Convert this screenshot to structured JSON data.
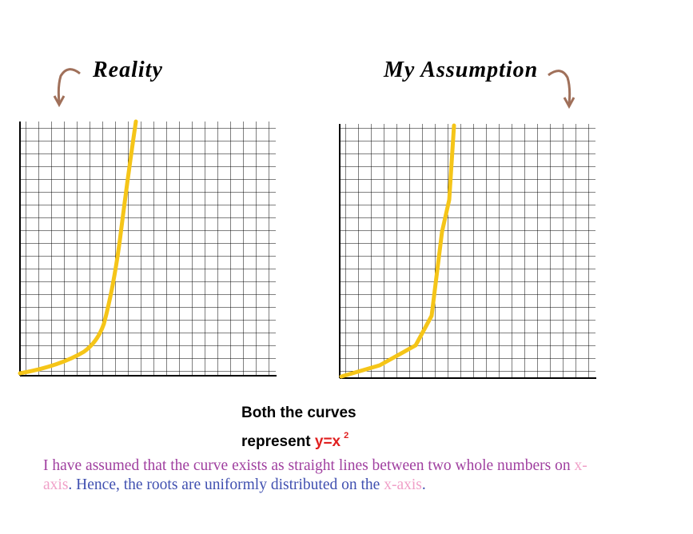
{
  "titles": {
    "left": "Reality",
    "right": "My Assumption"
  },
  "caption": {
    "line1": "Both the curves",
    "line2": "represent",
    "equation": "y=x",
    "exponent": "2"
  },
  "note": {
    "segments": [
      "I have assumed that the curve exists as straight lines between two whole numbers on",
      "x-axis",
      ". Hence, the roots are uniformly distributed on the",
      "x-axis",
      "."
    ]
  }
}
